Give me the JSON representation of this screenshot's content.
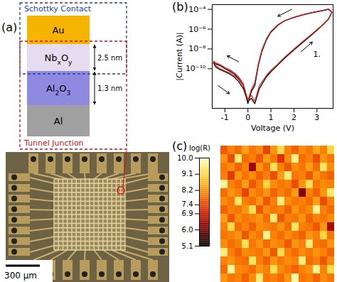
{
  "panel_a": {
    "label": "(a)",
    "diagram": {
      "schottky_label": "Schottky Contact",
      "tunnel_label": "Tunnel Junction",
      "layers": [
        {
          "parts": [
            {
              "t": "Au"
            }
          ]
        },
        {
          "parts": [
            {
              "t": "Nb"
            },
            {
              "t": "x",
              "sub": true
            },
            {
              "t": "O"
            },
            {
              "t": "y",
              "sub": true
            }
          ]
        },
        {
          "parts": [
            {
              "t": "Al"
            },
            {
              "t": "2",
              "sub": true
            },
            {
              "t": "O"
            },
            {
              "t": "3",
              "sub": true
            }
          ]
        },
        {
          "parts": [
            {
              "t": "Al"
            }
          ]
        }
      ],
      "thickness_labels": [
        "2.5 nm",
        "1.3 nm"
      ]
    },
    "micrograph": {
      "scale_bar": "300 µm"
    }
  },
  "chart_data": [
    {
      "type": "line",
      "title": "(b)",
      "x_label": "Voltage (V)",
      "y_label": "|Current (A)|",
      "log": "y",
      "grid": false,
      "xlim": [
        -1.55,
        3.7
      ],
      "xticks": [
        -1,
        0,
        1,
        2,
        3
      ],
      "ylim": [
        1e-14,
        0.0003
      ],
      "yticks": [
        {
          "value": 1e-10,
          "label": "10⁻¹⁰"
        },
        {
          "value": 1e-08,
          "label": "10⁻⁸"
        },
        {
          "value": 1e-06,
          "label": "10⁻⁶"
        },
        {
          "value": 0.0001,
          "label": "10⁻⁴"
        }
      ],
      "x": [
        0.3,
        0.5,
        0.8,
        1.0,
        1.3,
        1.6,
        2.0,
        2.4,
        2.8,
        3.2,
        3.5,
        3.65,
        3.5,
        3.2,
        2.8,
        2.4,
        2.0,
        1.6,
        1.3,
        1.0,
        0.8,
        0.6,
        0.45,
        0.3,
        0.15,
        0,
        -0.2,
        -0.4,
        -0.6,
        -0.8,
        -1.0,
        -1.2,
        -1.4,
        -1.5,
        -1.4,
        -1.2,
        -1.0,
        -0.8,
        -0.6,
        -0.4,
        -0.2,
        0.0,
        0.15,
        0.3
      ],
      "series": [
        {
          "color": "#000000",
          "values": [
            3e-14,
            1e-12,
            1.5e-11,
            5e-11,
            2.5e-10,
            1.2e-09,
            8e-09,
            5e-08,
            3e-07,
            2e-06,
            1e-05,
            5e-05,
            0.0001,
            7e-05,
            4.5e-05,
            2.8e-05,
            1.5e-05,
            7e-06,
            2.5e-06,
            5e-07,
            8e-08,
            5e-09,
            2e-10,
            2e-12,
            5e-13,
            3e-14,
            2e-12,
            1e-11,
            3e-11,
            6e-11,
            1e-10,
            2e-10,
            3e-10,
            4e-10,
            1.5e-10,
            8e-11,
            5e-11,
            3e-11,
            1.5e-11,
            5e-12,
            1e-12,
            5e-14,
            1e-13,
            3e-14
          ]
        },
        {
          "color": "#e02020",
          "values": [
            5e-14,
            2e-12,
            2e-11,
            7e-11,
            3e-10,
            1.5e-09,
            1e-08,
            6e-08,
            3.5e-07,
            2.2e-06,
            1.1e-05,
            5.5e-05,
            0.00011,
            7.5e-05,
            5e-05,
            3e-05,
            1.6e-05,
            7.5e-06,
            2.8e-06,
            6e-07,
            1e-07,
            7e-09,
            3e-10,
            4e-12,
            8e-13,
            6e-14,
            3e-12,
            1.5e-11,
            4e-11,
            8e-11,
            1.3e-10,
            2.5e-10,
            4e-10,
            6e-10,
            2e-10,
            1e-10,
            6e-11,
            4e-11,
            2e-11,
            8e-12,
            2e-12,
            8e-14,
            2e-13,
            5e-14
          ]
        }
      ],
      "arrows": [
        {
          "x1": 1.9,
          "y1": 0.0001,
          "x2": 1.3,
          "y2": 2e-05
        },
        {
          "x1": 2.3,
          "y1": 5e-09,
          "x2": 2.8,
          "y2": 5e-08
        },
        {
          "x1": -0.4,
          "y1": 5e-10,
          "x2": -0.9,
          "y2": 2e-09
        },
        {
          "x1": -1.3,
          "y1": 2e-12,
          "x2": -0.8,
          "y2": 3e-13
        }
      ],
      "annotations": [
        {
          "text": "1.",
          "x": 3.0,
          "y": 3e-09
        }
      ]
    },
    {
      "type": "heatmap",
      "title": "(c)",
      "tick_labels": false,
      "cells": [
        [
          7.6,
          8.0,
          7.8,
          8.3,
          7.9,
          8.1,
          7.4,
          8.2,
          9.1,
          8.0,
          7.7,
          8.1,
          7.9,
          8.4,
          8.0,
          9.0
        ],
        [
          8.2,
          7.5,
          9.4,
          7.8,
          8.0,
          7.6,
          8.3,
          7.9,
          7.2,
          8.1,
          9.6,
          7.8,
          8.0,
          7.5,
          8.2,
          7.9
        ],
        [
          7.9,
          8.1,
          7.7,
          8.0,
          6.4,
          8.2,
          7.8,
          9.2,
          8.0,
          7.6,
          8.1,
          7.9,
          8.3,
          7.8,
          9.3,
          8.1
        ],
        [
          8.0,
          7.3,
          8.2,
          7.9,
          8.1,
          7.7,
          8.0,
          7.5,
          8.3,
          9.5,
          7.9,
          8.0,
          7.6,
          8.2,
          7.9,
          7.7
        ],
        [
          9.7,
          8.0,
          7.8,
          8.3,
          7.6,
          8.0,
          9.0,
          8.1,
          7.9,
          8.0,
          7.5,
          8.2,
          9.2,
          7.9,
          8.1,
          8.0
        ],
        [
          7.8,
          8.2,
          8.0,
          7.4,
          8.1,
          7.9,
          8.2,
          7.7,
          8.0,
          7.8,
          8.3,
          6.2,
          8.0,
          7.7,
          8.2,
          9.4
        ],
        [
          8.1,
          7.9,
          9.3,
          8.0,
          7.8,
          8.2,
          7.6,
          8.0,
          9.5,
          8.1,
          7.9,
          8.0,
          7.8,
          8.3,
          7.5,
          8.0
        ],
        [
          7.7,
          8.0,
          7.9,
          8.2,
          9.2,
          7.6,
          8.1,
          7.9,
          8.0,
          7.7,
          8.2,
          7.9,
          8.1,
          9.6,
          8.0,
          7.8
        ],
        [
          8.3,
          7.6,
          8.1,
          7.9,
          8.0,
          8.2,
          7.8,
          9.4,
          7.6,
          8.0,
          7.9,
          8.2,
          7.7,
          8.0,
          7.9,
          8.1
        ],
        [
          8.0,
          9.1,
          7.8,
          8.0,
          7.7,
          8.1,
          8.0,
          7.9,
          8.2,
          7.8,
          9.3,
          8.0,
          7.9,
          7.6,
          8.2,
          6.5
        ],
        [
          7.9,
          8.0,
          8.2,
          7.6,
          8.1,
          7.9,
          9.6,
          8.0,
          7.8,
          8.1,
          7.9,
          7.7,
          8.2,
          8.0,
          9.0,
          7.9
        ],
        [
          8.1,
          7.8,
          8.0,
          9.2,
          7.9,
          8.2,
          7.8,
          8.1,
          8.0,
          7.6,
          8.2,
          8.0,
          9.4,
          7.9,
          7.8,
          8.2
        ],
        [
          9.5,
          8.0,
          7.7,
          8.1,
          8.0,
          7.9,
          8.2,
          7.6,
          9.1,
          8.0,
          7.8,
          8.1,
          7.9,
          8.2,
          8.0,
          7.7
        ],
        [
          8.0,
          8.2,
          7.9,
          7.8,
          9.3,
          8.0,
          7.7,
          8.2,
          7.9,
          8.1,
          8.0,
          9.5,
          7.8,
          8.0,
          7.6,
          8.1
        ],
        [
          7.8,
          9.7,
          8.1,
          8.0,
          7.8,
          8.2,
          8.0,
          9.2,
          8.1,
          7.9,
          7.7,
          8.0,
          8.2,
          9.6,
          8.0,
          9.1
        ],
        [
          8.2,
          7.9,
          8.0,
          7.7,
          8.1,
          9.4,
          7.9,
          8.0,
          7.8,
          8.2,
          9.8,
          7.9,
          8.0,
          7.7,
          8.1,
          7.9
        ]
      ],
      "colorbar": {
        "label": "log(R)",
        "lim": [
          5.1,
          10
        ],
        "ticks": [
          {
            "value": 10,
            "label": "10.0"
          },
          9.1,
          8.2,
          7.4,
          6.9,
          {
            "value": 6,
            "label": "6.0"
          },
          5.1
        ]
      }
    }
  ]
}
